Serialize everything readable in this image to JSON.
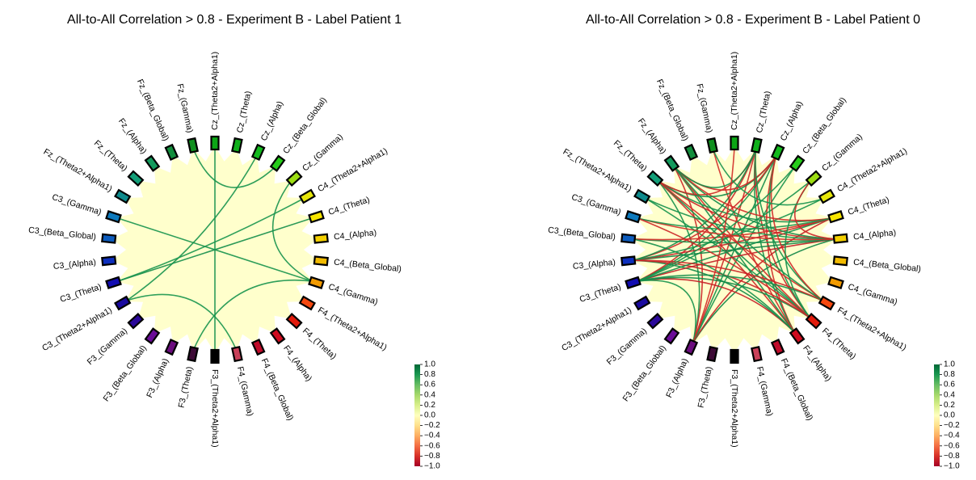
{
  "chart_data": [
    {
      "type": "chord",
      "title": "All-to-All Correlation > 0.8 - Experiment B - Label Patient 1",
      "nodes": [
        "F3_(Theta2+Alpha1)",
        "F3_(Theta)",
        "F3_(Alpha)",
        "F3_(Beta_Global)",
        "F3_(Gamma)",
        "C3_(Theta2+Alpha1)",
        "C3_(Theta)",
        "C3_(Alpha)",
        "C3_(Beta_Global)",
        "C3_(Gamma)",
        "Fz_(Theta2+Alpha1)",
        "Fz_(Theta)",
        "Fz_(Alpha)",
        "Fz_(Beta_Global)",
        "Fz_(Gamma)",
        "Cz_(Theta2+Alpha1)",
        "Cz_(Theta)",
        "Cz_(Alpha)",
        "Cz_(Beta_Global)",
        "Cz_(Gamma)",
        "C4_(Theta2+Alpha1)",
        "C4_(Theta)",
        "C4_(Alpha)",
        "C4_(Beta_Global)",
        "C4_(Gamma)",
        "F4_(Theta2+Alpha1)",
        "F4_(Theta)",
        "F4_(Alpha)",
        "F4_(Beta_Global)",
        "F4_(Gamma)"
      ],
      "node_colors": [
        "#000000",
        "#3d0a36",
        "#6b0d7d",
        "#6a0c96",
        "#2a089a",
        "#1a0a9e",
        "#120cb0",
        "#0d2fbd",
        "#0d5cbd",
        "#0c79bd",
        "#0e8a8c",
        "#139e78",
        "#139a5c",
        "#138d3c",
        "#10901f",
        "#0ca616",
        "#0fb01b",
        "#12ba1d",
        "#26cc1a",
        "#9cdd12",
        "#e6e60a",
        "#f7e500",
        "#f4d000",
        "#f1ba00",
        "#f29a00",
        "#f5480f",
        "#e21b0c",
        "#cf0b1e",
        "#c00b2a",
        "#c9415a"
      ],
      "edges": [
        {
          "source": "F3_(Theta)",
          "target": "C4_(Gamma)",
          "value": 0.82
        },
        {
          "source": "F4_(Gamma)",
          "target": "C3_(Theta2+Alpha1)",
          "value": 0.81
        },
        {
          "source": "F3_(Theta2+Alpha1)",
          "target": "Cz_(Theta2+Alpha1)",
          "value": 0.83
        },
        {
          "source": "C3_(Theta2+Alpha1)",
          "target": "Cz_(Alpha)",
          "value": 0.82
        },
        {
          "source": "C3_(Theta)",
          "target": "C4_(Theta2+Alpha1)",
          "value": 0.81
        },
        {
          "source": "C3_(Theta)",
          "target": "C4_(Theta)",
          "value": 0.84
        },
        {
          "source": "C3_(Gamma)",
          "target": "C4_(Gamma)",
          "value": 0.82
        },
        {
          "source": "C4_(Gamma)",
          "target": "Cz_(Gamma)",
          "value": 0.83
        },
        {
          "source": "Fz_(Gamma)",
          "target": "Cz_(Beta_Global)",
          "value": 0.82
        }
      ],
      "colorbar": {
        "ticks": [
          1.0,
          0.8,
          0.6,
          0.4,
          0.2,
          0.0,
          -0.2,
          -0.4,
          -0.6,
          -0.8,
          -1.0
        ],
        "range": [
          -1.0,
          1.0
        ],
        "colormap": "RdYlGn"
      }
    },
    {
      "type": "chord",
      "title": "All-to-All Correlation > 0.8 - Experiment B - Label Patient 0",
      "nodes": [
        "F3_(Theta2+Alpha1)",
        "F3_(Theta)",
        "F3_(Alpha)",
        "F3_(Beta_Global)",
        "F3_(Gamma)",
        "C3_(Theta2+Alpha1)",
        "C3_(Theta)",
        "C3_(Alpha)",
        "C3_(Beta_Global)",
        "C3_(Gamma)",
        "Fz_(Theta2+Alpha1)",
        "Fz_(Theta)",
        "Fz_(Alpha)",
        "Fz_(Beta_Global)",
        "Fz_(Gamma)",
        "Cz_(Theta2+Alpha1)",
        "Cz_(Theta)",
        "Cz_(Alpha)",
        "Cz_(Beta_Global)",
        "Cz_(Gamma)",
        "C4_(Theta2+Alpha1)",
        "C4_(Theta)",
        "C4_(Alpha)",
        "C4_(Beta_Global)",
        "C4_(Gamma)",
        "F4_(Theta2+Alpha1)",
        "F4_(Theta)",
        "F4_(Alpha)",
        "F4_(Beta_Global)",
        "F4_(Gamma)"
      ],
      "node_colors": [
        "#000000",
        "#3d0a36",
        "#6b0d7d",
        "#6a0c96",
        "#2a089a",
        "#1a0a9e",
        "#120cb0",
        "#0d2fbd",
        "#0d5cbd",
        "#0c79bd",
        "#0e8a8c",
        "#139e78",
        "#139a5c",
        "#138d3c",
        "#10901f",
        "#0ca616",
        "#0fb01b",
        "#12ba1d",
        "#26cc1a",
        "#9cdd12",
        "#e6e60a",
        "#f7e500",
        "#f4d000",
        "#f1ba00",
        "#f29a00",
        "#f5480f",
        "#e21b0c",
        "#cf0b1e",
        "#c00b2a",
        "#c9415a"
      ],
      "edges": [
        {
          "source": "F3_(Alpha)",
          "target": "C4_(Alpha)",
          "value": 0.88
        },
        {
          "source": "F3_(Alpha)",
          "target": "C4_(Theta)",
          "value": -0.86
        },
        {
          "source": "F3_(Alpha)",
          "target": "Cz_(Alpha)",
          "value": 0.85
        },
        {
          "source": "F3_(Alpha)",
          "target": "Cz_(Theta)",
          "value": -0.84
        },
        {
          "source": "F3_(Alpha)",
          "target": "Fz_(Theta)",
          "value": 0.83
        },
        {
          "source": "F3_(Alpha)",
          "target": "Fz_(Alpha)",
          "value": -0.85
        },
        {
          "source": "F3_(Alpha)",
          "target": "Cz_(Beta_Global)",
          "value": 0.82
        },
        {
          "source": "F4_(Alpha)",
          "target": "C3_(Theta)",
          "value": -0.87
        },
        {
          "source": "F4_(Alpha)",
          "target": "C3_(Alpha)",
          "value": 0.86
        },
        {
          "source": "F4_(Alpha)",
          "target": "Fz_(Theta)",
          "value": -0.84
        },
        {
          "source": "F4_(Alpha)",
          "target": "Fz_(Alpha)",
          "value": 0.85
        },
        {
          "source": "F4_(Alpha)",
          "target": "Cz_(Alpha)",
          "value": -0.83
        },
        {
          "source": "F4_(Alpha)",
          "target": "Cz_(Theta)",
          "value": 0.84
        },
        {
          "source": "F4_(Alpha)",
          "target": "Fz_(Gamma)",
          "value": -0.82
        },
        {
          "source": "F4_(Theta)",
          "target": "C3_(Theta)",
          "value": 0.86
        },
        {
          "source": "F4_(Theta)",
          "target": "C3_(Alpha)",
          "value": -0.85
        },
        {
          "source": "F4_(Theta)",
          "target": "Fz_(Theta)",
          "value": 0.84
        },
        {
          "source": "F4_(Theta)",
          "target": "Fz_(Alpha)",
          "value": -0.83
        },
        {
          "source": "F4_(Theta)",
          "target": "Cz_(Theta)",
          "value": -0.86
        },
        {
          "source": "F4_(Theta)",
          "target": "Cz_(Alpha)",
          "value": 0.83
        },
        {
          "source": "F4_(Theta)",
          "target": "Fz_(Theta2+Alpha1)",
          "value": 0.82
        },
        {
          "source": "C3_(Theta)",
          "target": "C4_(Alpha)",
          "value": -0.88
        },
        {
          "source": "C3_(Theta)",
          "target": "C4_(Theta)",
          "value": 0.86
        },
        {
          "source": "C3_(Theta)",
          "target": "Cz_(Alpha)",
          "value": 0.84
        },
        {
          "source": "C3_(Theta)",
          "target": "Cz_(Theta)",
          "value": -0.85
        },
        {
          "source": "C3_(Theta)",
          "target": "Cz_(Gamma)",
          "value": 0.83
        },
        {
          "source": "C3_(Alpha)",
          "target": "C4_(Alpha)",
          "value": 0.89
        },
        {
          "source": "C3_(Alpha)",
          "target": "C4_(Theta)",
          "value": -0.87
        },
        {
          "source": "C3_(Alpha)",
          "target": "Cz_(Alpha)",
          "value": -0.84
        },
        {
          "source": "C3_(Alpha)",
          "target": "Cz_(Theta)",
          "value": 0.85
        },
        {
          "source": "C3_(Alpha)",
          "target": "C4_(Theta2+Alpha1)",
          "value": 0.82
        },
        {
          "source": "C4_(Alpha)",
          "target": "Fz_(Theta)",
          "value": -0.86
        },
        {
          "source": "C4_(Alpha)",
          "target": "Fz_(Alpha)",
          "value": 0.85
        },
        {
          "source": "C4_(Alpha)",
          "target": "Fz_(Theta2+Alpha1)",
          "value": 0.83
        },
        {
          "source": "C4_(Alpha)",
          "target": "C3_(Beta_Global)",
          "value": 0.84
        },
        {
          "source": "C4_(Alpha)",
          "target": "C3_(Gamma)",
          "value": -0.82
        },
        {
          "source": "C4_(Theta)",
          "target": "Fz_(Theta)",
          "value": 0.84
        },
        {
          "source": "C4_(Theta)",
          "target": "Fz_(Alpha)",
          "value": -0.83
        },
        {
          "source": "C4_(Theta)",
          "target": "C3_(Beta_Global)",
          "value": -0.82
        },
        {
          "source": "C4_(Theta)",
          "target": "C3_(Gamma)",
          "value": 0.83
        },
        {
          "source": "Cz_(Alpha)",
          "target": "Fz_(Theta)",
          "value": 0.85
        },
        {
          "source": "Cz_(Alpha)",
          "target": "Fz_(Alpha)",
          "value": -0.84
        },
        {
          "source": "Cz_(Theta)",
          "target": "Fz_(Theta)",
          "value": -0.83
        },
        {
          "source": "Cz_(Theta)",
          "target": "Fz_(Alpha)",
          "value": 0.84
        },
        {
          "source": "Cz_(Theta)",
          "target": "F4_(Theta2+Alpha1)",
          "value": 0.82
        },
        {
          "source": "Cz_(Alpha)",
          "target": "F4_(Theta2+Alpha1)",
          "value": -0.83
        },
        {
          "source": "C3_(Theta)",
          "target": "F4_(Theta2+Alpha1)",
          "value": 0.84
        },
        {
          "source": "C3_(Alpha)",
          "target": "F4_(Theta2+Alpha1)",
          "value": -0.85
        },
        {
          "source": "Fz_(Theta)",
          "target": "F4_(Theta2+Alpha1)",
          "value": -0.82
        },
        {
          "source": "Fz_(Alpha)",
          "target": "F4_(Theta2+Alpha1)",
          "value": 0.83
        },
        {
          "source": "F3_(Alpha)",
          "target": "C3_(Theta)",
          "value": 0.82
        },
        {
          "source": "Cz_(Gamma)",
          "target": "F4_(Theta)",
          "value": 0.83
        },
        {
          "source": "Cz_(Gamma)",
          "target": "C4_(Alpha)",
          "value": -0.84
        },
        {
          "source": "Fz_(Gamma)",
          "target": "C4_(Theta2+Alpha1)",
          "value": 0.82
        },
        {
          "source": "C3_(Beta_Global)",
          "target": "F4_(Alpha)",
          "value": 0.83
        },
        {
          "source": "C3_(Gamma)",
          "target": "F4_(Theta)",
          "value": -0.84
        },
        {
          "source": "Cz_(Theta2+Alpha1)",
          "target": "F3_(Alpha)",
          "value": -0.82
        },
        {
          "source": "Cz_(Beta_Global)",
          "target": "C3_(Theta)",
          "value": 0.82
        }
      ],
      "colorbar": {
        "ticks": [
          1.0,
          0.8,
          0.6,
          0.4,
          0.2,
          0.0,
          -0.2,
          -0.4,
          -0.6,
          -0.8,
          -1.0
        ],
        "range": [
          -1.0,
          1.0
        ],
        "colormap": "RdYlGn"
      }
    }
  ]
}
